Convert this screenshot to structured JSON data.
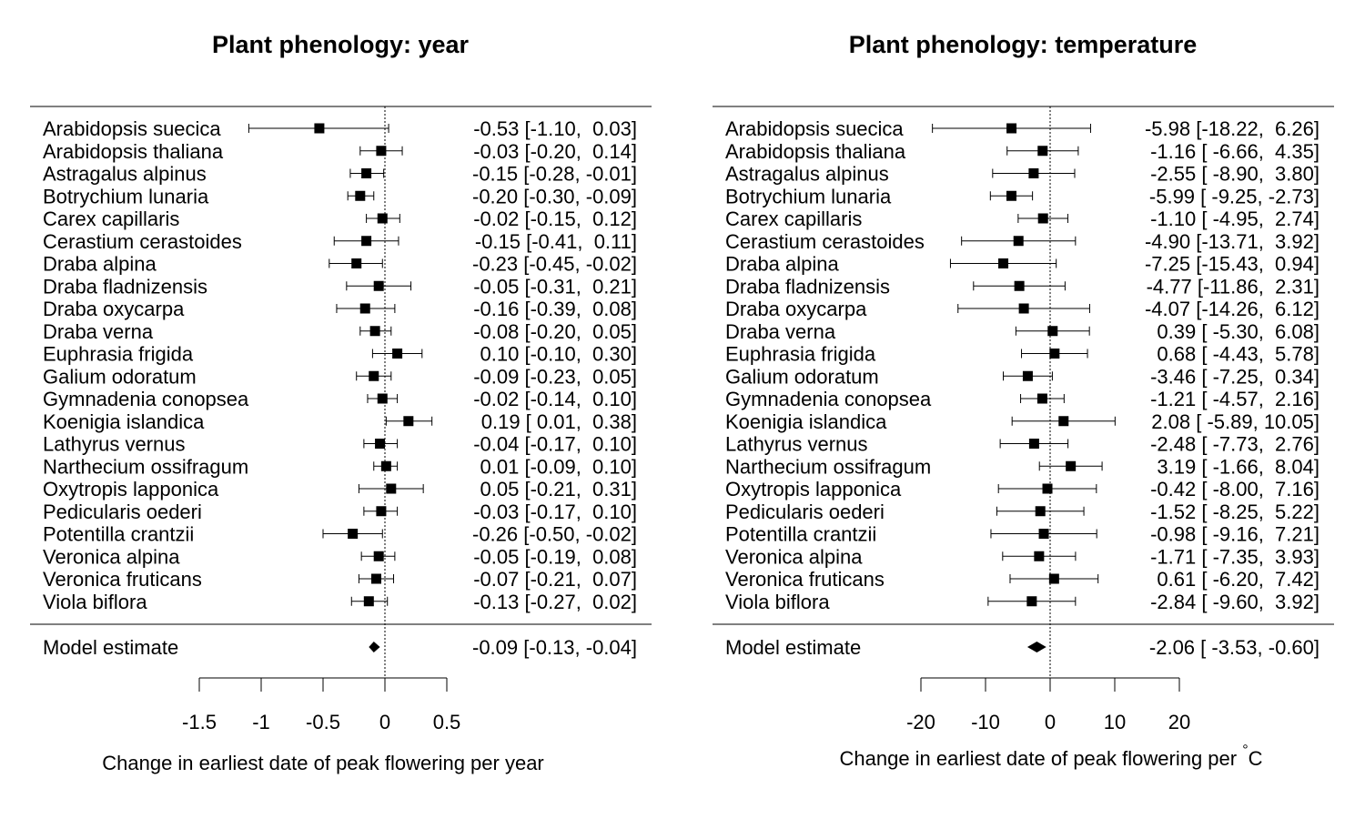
{
  "chart_data": [
    {
      "type": "forest",
      "title": "Plant phenology: year",
      "xlabel": "Change in earliest date of peak flowering per year",
      "xlim": [
        -1.5,
        0.5
      ],
      "ticks": [
        "-1.5",
        "-1",
        "-0.5",
        "0",
        "0.5"
      ],
      "reference_line": 0,
      "studies": [
        {
          "name": "Arabidopsis suecica",
          "est": -0.53,
          "lo": -1.1,
          "hi": 0.03,
          "label": "-0.53 [-1.10,  0.03]"
        },
        {
          "name": "Arabidopsis thaliana",
          "est": -0.03,
          "lo": -0.2,
          "hi": 0.14,
          "label": "-0.03 [-0.20,  0.14]"
        },
        {
          "name": "Astragalus alpinus",
          "est": -0.15,
          "lo": -0.28,
          "hi": -0.01,
          "label": "-0.15 [-0.28, -0.01]"
        },
        {
          "name": "Botrychium lunaria",
          "est": -0.2,
          "lo": -0.3,
          "hi": -0.09,
          "label": "-0.20 [-0.30, -0.09]"
        },
        {
          "name": "Carex capillaris",
          "est": -0.02,
          "lo": -0.15,
          "hi": 0.12,
          "label": "-0.02 [-0.15,  0.12]"
        },
        {
          "name": "Cerastium cerastoides",
          "est": -0.15,
          "lo": -0.41,
          "hi": 0.11,
          "label": "-0.15 [-0.41,  0.11]"
        },
        {
          "name": "Draba alpina",
          "est": -0.23,
          "lo": -0.45,
          "hi": -0.02,
          "label": "-0.23 [-0.45, -0.02]"
        },
        {
          "name": "Draba fladnizensis",
          "est": -0.05,
          "lo": -0.31,
          "hi": 0.21,
          "label": "-0.05 [-0.31,  0.21]"
        },
        {
          "name": "Draba oxycarpa",
          "est": -0.16,
          "lo": -0.39,
          "hi": 0.08,
          "label": "-0.16 [-0.39,  0.08]"
        },
        {
          "name": "Draba verna",
          "est": -0.08,
          "lo": -0.2,
          "hi": 0.05,
          "label": "-0.08 [-0.20,  0.05]"
        },
        {
          "name": "Euphrasia frigida",
          "est": 0.1,
          "lo": -0.1,
          "hi": 0.3,
          "label": " 0.10 [-0.10,  0.30]"
        },
        {
          "name": "Galium odoratum",
          "est": -0.09,
          "lo": -0.23,
          "hi": 0.05,
          "label": "-0.09 [-0.23,  0.05]"
        },
        {
          "name": "Gymnadenia conopsea",
          "est": -0.02,
          "lo": -0.14,
          "hi": 0.1,
          "label": "-0.02 [-0.14,  0.10]"
        },
        {
          "name": "Koenigia islandica",
          "est": 0.19,
          "lo": 0.01,
          "hi": 0.38,
          "label": " 0.19 [ 0.01,  0.38]"
        },
        {
          "name": "Lathyrus vernus",
          "est": -0.04,
          "lo": -0.17,
          "hi": 0.1,
          "label": "-0.04 [-0.17,  0.10]"
        },
        {
          "name": "Narthecium ossifragum",
          "est": 0.01,
          "lo": -0.09,
          "hi": 0.1,
          "label": " 0.01 [-0.09,  0.10]"
        },
        {
          "name": "Oxytropis lapponica",
          "est": 0.05,
          "lo": -0.21,
          "hi": 0.31,
          "label": " 0.05 [-0.21,  0.31]"
        },
        {
          "name": "Pedicularis oederi",
          "est": -0.03,
          "lo": -0.17,
          "hi": 0.1,
          "label": "-0.03 [-0.17,  0.10]"
        },
        {
          "name": "Potentilla crantzii",
          "est": -0.26,
          "lo": -0.5,
          "hi": -0.02,
          "label": "-0.26 [-0.50, -0.02]"
        },
        {
          "name": "Veronica alpina",
          "est": -0.05,
          "lo": -0.19,
          "hi": 0.08,
          "label": "-0.05 [-0.19,  0.08]"
        },
        {
          "name": "Veronica fruticans",
          "est": -0.07,
          "lo": -0.21,
          "hi": 0.07,
          "label": "-0.07 [-0.21,  0.07]"
        },
        {
          "name": "Viola biflora",
          "est": -0.13,
          "lo": -0.27,
          "hi": 0.02,
          "label": "-0.13 [-0.27,  0.02]"
        }
      ],
      "summary": {
        "name": "Model estimate",
        "est": -0.09,
        "lo": -0.13,
        "hi": -0.04,
        "label": "-0.09 [-0.13, -0.04]"
      }
    },
    {
      "type": "forest",
      "title": "Plant phenology: temperature",
      "xlabel": "Change in earliest date of peak flowering per ",
      "xlabel_sup": "°",
      "xlabel_tail": "C",
      "xlim": [
        -20,
        20
      ],
      "ticks": [
        "-20",
        "-10",
        "0",
        "10",
        "20"
      ],
      "reference_line": 0,
      "studies": [
        {
          "name": "Arabidopsis suecica",
          "est": -5.98,
          "lo": -18.22,
          "hi": 6.26,
          "label": "-5.98 [-18.22,  6.26]"
        },
        {
          "name": "Arabidopsis thaliana",
          "est": -1.16,
          "lo": -6.66,
          "hi": 4.35,
          "label": "-1.16 [ -6.66,  4.35]"
        },
        {
          "name": "Astragalus alpinus",
          "est": -2.55,
          "lo": -8.9,
          "hi": 3.8,
          "label": "-2.55 [ -8.90,  3.80]"
        },
        {
          "name": "Botrychium lunaria",
          "est": -5.99,
          "lo": -9.25,
          "hi": -2.73,
          "label": "-5.99 [ -9.25, -2.73]"
        },
        {
          "name": "Carex capillaris",
          "est": -1.1,
          "lo": -4.95,
          "hi": 2.74,
          "label": "-1.10 [ -4.95,  2.74]"
        },
        {
          "name": "Cerastium cerastoides",
          "est": -4.9,
          "lo": -13.71,
          "hi": 3.92,
          "label": "-4.90 [-13.71,  3.92]"
        },
        {
          "name": "Draba alpina",
          "est": -7.25,
          "lo": -15.43,
          "hi": 0.94,
          "label": "-7.25 [-15.43,  0.94]"
        },
        {
          "name": "Draba fladnizensis",
          "est": -4.77,
          "lo": -11.86,
          "hi": 2.31,
          "label": "-4.77 [-11.86,  2.31]"
        },
        {
          "name": "Draba oxycarpa",
          "est": -4.07,
          "lo": -14.26,
          "hi": 6.12,
          "label": "-4.07 [-14.26,  6.12]"
        },
        {
          "name": "Draba verna",
          "est": 0.39,
          "lo": -5.3,
          "hi": 6.08,
          "label": " 0.39 [ -5.30,  6.08]"
        },
        {
          "name": "Euphrasia frigida",
          "est": 0.68,
          "lo": -4.43,
          "hi": 5.78,
          "label": " 0.68 [ -4.43,  5.78]"
        },
        {
          "name": "Galium odoratum",
          "est": -3.46,
          "lo": -7.25,
          "hi": 0.34,
          "label": "-3.46 [ -7.25,  0.34]"
        },
        {
          "name": "Gymnadenia conopsea",
          "est": -1.21,
          "lo": -4.57,
          "hi": 2.16,
          "label": "-1.21 [ -4.57,  2.16]"
        },
        {
          "name": "Koenigia islandica",
          "est": 2.08,
          "lo": -5.89,
          "hi": 10.05,
          "label": " 2.08 [ -5.89, 10.05]"
        },
        {
          "name": "Lathyrus vernus",
          "est": -2.48,
          "lo": -7.73,
          "hi": 2.76,
          "label": "-2.48 [ -7.73,  2.76]"
        },
        {
          "name": "Narthecium ossifragum",
          "est": 3.19,
          "lo": -1.66,
          "hi": 8.04,
          "label": " 3.19 [ -1.66,  8.04]"
        },
        {
          "name": "Oxytropis lapponica",
          "est": -0.42,
          "lo": -8.0,
          "hi": 7.16,
          "label": "-0.42 [ -8.00,  7.16]"
        },
        {
          "name": "Pedicularis oederi",
          "est": -1.52,
          "lo": -8.25,
          "hi": 5.22,
          "label": "-1.52 [ -8.25,  5.22]"
        },
        {
          "name": "Potentilla crantzii",
          "est": -0.98,
          "lo": -9.16,
          "hi": 7.21,
          "label": "-0.98 [ -9.16,  7.21]"
        },
        {
          "name": "Veronica alpina",
          "est": -1.71,
          "lo": -7.35,
          "hi": 3.93,
          "label": "-1.71 [ -7.35,  3.93]"
        },
        {
          "name": "Veronica fruticans",
          "est": 0.61,
          "lo": -6.2,
          "hi": 7.42,
          "label": " 0.61 [ -6.20,  7.42]"
        },
        {
          "name": "Viola biflora",
          "est": -2.84,
          "lo": -9.6,
          "hi": 3.92,
          "label": "-2.84 [ -9.60,  3.92]"
        }
      ],
      "summary": {
        "name": "Model estimate",
        "est": -2.06,
        "lo": -3.53,
        "hi": -0.6,
        "label": "-2.06 [ -3.53, -0.60]"
      }
    }
  ]
}
